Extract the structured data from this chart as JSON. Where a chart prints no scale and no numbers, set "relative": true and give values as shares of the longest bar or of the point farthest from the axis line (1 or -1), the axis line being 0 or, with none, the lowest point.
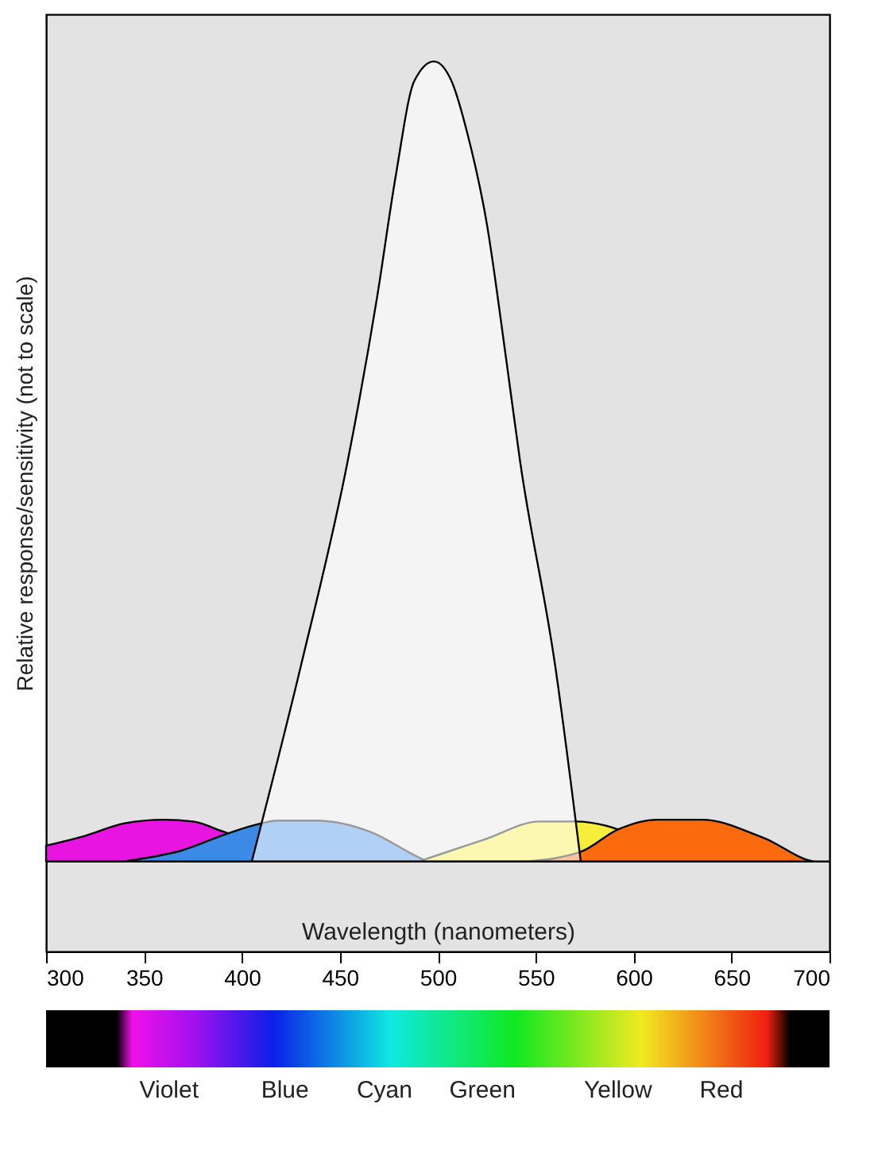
{
  "chart_data": {
    "type": "area",
    "relative": true,
    "xlabel": "Wavelength (nanometers)",
    "ylabel": "Relative response/sensitivity (not to scale)",
    "xlim": [
      300,
      700
    ],
    "xticks": [
      300,
      350,
      400,
      450,
      500,
      550,
      600,
      650,
      700
    ],
    "grid": false,
    "series": [
      {
        "color": "#e815e0",
        "x": [
          300,
          320,
          340,
          360,
          375,
          390,
          430
        ],
        "values": [
          0.119,
          0.13,
          0.144,
          0.148,
          0.146,
          0.135,
          0.101
        ]
      },
      {
        "color": "#3a8ae6",
        "x": [
          339,
          370,
          392,
          410,
          418,
          438,
          466,
          490,
          495
        ],
        "values": [
          0.101,
          0.114,
          0.132,
          0.144,
          0.147,
          0.147,
          0.134,
          0.106,
          0.101
        ]
      },
      {
        "color": "#f7ee3c",
        "x": [
          490,
          505,
          524,
          552,
          570,
          592,
          620
        ],
        "values": [
          0.101,
          0.112,
          0.126,
          0.146,
          0.146,
          0.137,
          0.101
        ]
      },
      {
        "color": "#fb6a0c",
        "x": [
          545,
          573,
          592,
          612,
          635,
          666,
          694,
          700
        ],
        "values": [
          0.101,
          0.112,
          0.137,
          0.148,
          0.148,
          0.128,
          0.101,
          0.101
        ]
      },
      {
        "color": "#ffffff",
        "x": [
          405,
          430,
          454,
          469,
          478.5,
          488,
          498,
          507,
          515,
          525,
          535,
          542,
          560,
          573
        ],
        "values": [
          0.101,
          0.32,
          0.551,
          0.735,
          0.871,
          0.978,
          1,
          0.978,
          0.92,
          0.818,
          0.664,
          0.551,
          0.32,
          0.101
        ]
      }
    ],
    "annotations": [
      "Violet",
      "Blue",
      "Cyan",
      "Green",
      "Yellow",
      "Red"
    ]
  }
}
